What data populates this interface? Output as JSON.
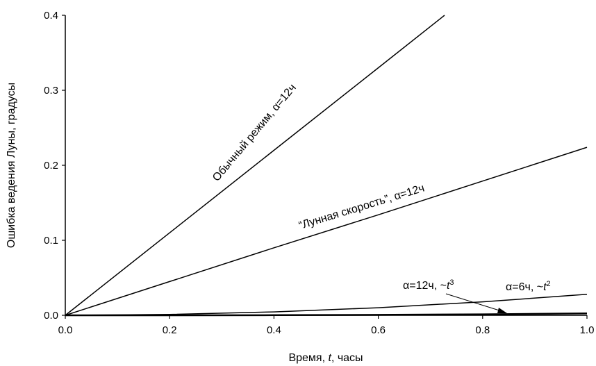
{
  "chart_data": {
    "type": "line",
    "xlabel_parts": [
      "Время, ",
      "t",
      ", часы"
    ],
    "ylabel": "Ошибка ведения Луны, градусы",
    "xlim": [
      0,
      1.0
    ],
    "ylim": [
      0,
      0.4
    ],
    "x_ticks": [
      "0.0",
      "0.2",
      "0.4",
      "0.6",
      "0.8",
      "1.0"
    ],
    "y_ticks": [
      "0.0",
      "0.1",
      "0.2",
      "0.3",
      "0.4"
    ],
    "grid": false,
    "series": [
      {
        "points": [
          [
            0,
            0
          ],
          [
            0.2,
            0.11
          ],
          [
            0.4,
            0.22
          ],
          [
            0.6,
            0.33
          ],
          [
            0.727,
            0.4
          ]
        ],
        "label_parts": [
          "Обычный режим, ",
          "α",
          "=12ч"
        ]
      },
      {
        "points": [
          [
            0,
            0
          ],
          [
            0.2,
            0.045
          ],
          [
            0.4,
            0.09
          ],
          [
            0.6,
            0.134
          ],
          [
            0.8,
            0.179
          ],
          [
            1.0,
            0.224
          ]
        ],
        "label_parts": [
          "“Лунная скорость”, ",
          "α",
          "=12ч"
        ]
      },
      {
        "points": [
          [
            0,
            0
          ],
          [
            0.2,
            0.0011
          ],
          [
            0.4,
            0.0045
          ],
          [
            0.6,
            0.0101
          ],
          [
            0.8,
            0.018
          ],
          [
            1.0,
            0.028
          ]
        ],
        "label_parts": [
          "α",
          "=6ч, ~",
          "t",
          "2"
        ]
      },
      {
        "points": [
          [
            0,
            0
          ],
          [
            0.2,
            2e-05
          ],
          [
            0.4,
            0.00016
          ],
          [
            0.6,
            0.00054
          ],
          [
            0.8,
            0.00128
          ],
          [
            1.0,
            0.0025
          ]
        ],
        "label_parts": [
          "α",
          "=12ч, ~",
          "t",
          "3"
        ]
      }
    ]
  }
}
